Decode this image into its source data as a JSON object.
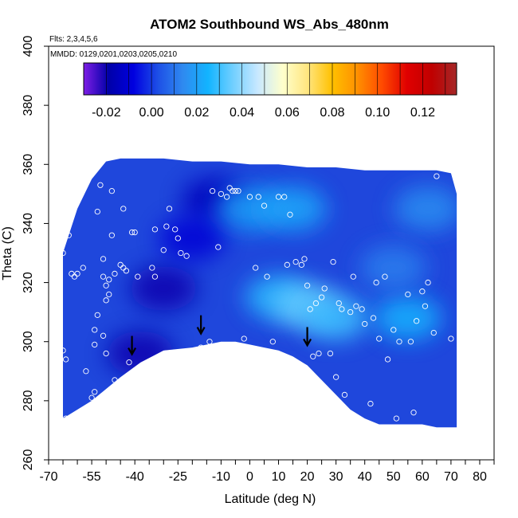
{
  "chart_data": {
    "type": "heatmap",
    "title": "ATOM2 Southbound WS_Abs_480nm",
    "flights_note": "Flts: 2,3,4,5,6",
    "dates_note": "MMDD: 0129,0201,0203,0205,0210",
    "xlabel": "Latitude (deg N)",
    "ylabel": "Theta (C)",
    "xlim": [
      -70,
      85
    ],
    "ylim": [
      260,
      400
    ],
    "x_ticks": [
      -70,
      -55,
      -40,
      -25,
      -10,
      0,
      10,
      20,
      30,
      40,
      50,
      60,
      70,
      80
    ],
    "x_ticks_labels": [
      "-70",
      "-55",
      "-40",
      "-25",
      "-10",
      "0",
      "10",
      "20",
      "30",
      "40",
      "50",
      "60",
      "70",
      "80"
    ],
    "y_ticks": [
      260,
      280,
      300,
      320,
      340,
      360,
      380,
      400
    ],
    "y_ticks_labels": [
      "260",
      "280",
      "300",
      "320",
      "340",
      "360",
      "380",
      "400"
    ],
    "colorbar": {
      "range": [
        -0.03,
        0.135
      ],
      "ticks": [
        -0.02,
        0.0,
        0.02,
        0.04,
        0.06,
        0.08,
        0.1,
        0.12
      ],
      "tick_labels": [
        "-0.02",
        "0.00",
        "0.02",
        "0.04",
        "0.06",
        "0.08",
        "0.10",
        "0.12"
      ],
      "colors": [
        "#7e1ee6",
        "#0000a8",
        "#0000e0",
        "#1e50e6",
        "#2f8af0",
        "#12b4ff",
        "#70cfff",
        "#c8e8ff",
        "#ffffcc",
        "#ffe680",
        "#ffc000",
        "#ff9000",
        "#ff4a00",
        "#e00000",
        "#c00000",
        "#a52828"
      ]
    },
    "tropopause_arrows_lat": [
      -41,
      -17,
      20
    ],
    "tropopause_arrows_theta": [
      296,
      303,
      299
    ],
    "field_lower_boundary": [
      [
        -65,
        274
      ],
      [
        -55,
        280
      ],
      [
        -45,
        288
      ],
      [
        -38,
        293
      ],
      [
        -30,
        297
      ],
      [
        -20,
        298
      ],
      [
        -10,
        300
      ],
      [
        -5,
        300
      ],
      [
        0,
        299
      ],
      [
        5,
        298
      ],
      [
        10,
        297
      ],
      [
        15,
        295
      ],
      [
        20,
        292
      ],
      [
        25,
        287
      ],
      [
        30,
        282
      ],
      [
        35,
        277
      ],
      [
        40,
        274
      ],
      [
        45,
        272
      ],
      [
        50,
        272
      ],
      [
        55,
        272
      ],
      [
        60,
        272
      ],
      [
        65,
        271
      ],
      [
        70,
        271
      ],
      [
        72,
        271
      ]
    ],
    "field_upper_boundary": [
      [
        -65,
        330
      ],
      [
        -60,
        345
      ],
      [
        -55,
        355
      ],
      [
        -50,
        361
      ],
      [
        -45,
        362
      ],
      [
        -40,
        362
      ],
      [
        -30,
        362
      ],
      [
        -20,
        361
      ],
      [
        -10,
        361
      ],
      [
        0,
        360
      ],
      [
        10,
        360
      ],
      [
        20,
        359
      ],
      [
        30,
        359
      ],
      [
        40,
        358
      ],
      [
        50,
        358
      ],
      [
        60,
        358
      ],
      [
        65,
        358
      ],
      [
        70,
        357
      ],
      [
        72,
        350
      ]
    ],
    "field_anomalies": [
      {
        "x": -30,
        "y": 318,
        "value": -0.02
      },
      {
        "x": -38,
        "y": 296,
        "value": -0.02
      },
      {
        "x": -12,
        "y": 348,
        "value": -0.015
      },
      {
        "x": -20,
        "y": 335,
        "value": -0.01
      },
      {
        "x": 10,
        "y": 315,
        "value": 0.028
      },
      {
        "x": 20,
        "y": 312,
        "value": 0.035
      },
      {
        "x": 30,
        "y": 308,
        "value": 0.03
      },
      {
        "x": 55,
        "y": 308,
        "value": 0.025
      },
      {
        "x": 0,
        "y": 345,
        "value": 0.02
      },
      {
        "x": 15,
        "y": 345,
        "value": 0.022
      },
      {
        "x": 62,
        "y": 345,
        "value": 0.015
      },
      {
        "x": 50,
        "y": 325,
        "value": 0.012
      }
    ],
    "sample_points": [
      [
        -65,
        330
      ],
      [
        -65,
        337
      ],
      [
        -65,
        297
      ],
      [
        -64,
        274
      ],
      [
        -64,
        294
      ],
      [
        -63,
        336
      ],
      [
        -62,
        323
      ],
      [
        -61,
        322
      ],
      [
        -60,
        323
      ],
      [
        -58,
        325
      ],
      [
        -57,
        290
      ],
      [
        -55,
        281
      ],
      [
        -54,
        283
      ],
      [
        -54,
        304
      ],
      [
        -54,
        299
      ],
      [
        -53,
        309
      ],
      [
        -53,
        344
      ],
      [
        -52,
        353
      ],
      [
        -51,
        302
      ],
      [
        -51,
        328
      ],
      [
        -51,
        322
      ],
      [
        -50,
        314
      ],
      [
        -50,
        319
      ],
      [
        -50,
        296
      ],
      [
        -49,
        321
      ],
      [
        -49,
        316
      ],
      [
        -48,
        351
      ],
      [
        -48,
        336
      ],
      [
        -47,
        287
      ],
      [
        -47,
        323
      ],
      [
        -45,
        326
      ],
      [
        -44,
        325
      ],
      [
        -44,
        345
      ],
      [
        -43,
        324
      ],
      [
        -42,
        293
      ],
      [
        -41,
        337
      ],
      [
        -40,
        337
      ],
      [
        -39,
        322
      ],
      [
        -36,
        292
      ],
      [
        -34,
        325
      ],
      [
        -33,
        338
      ],
      [
        -33,
        322
      ],
      [
        -31,
        293
      ],
      [
        -30,
        331
      ],
      [
        -29,
        339
      ],
      [
        -28,
        345
      ],
      [
        -26,
        338
      ],
      [
        -25,
        335
      ],
      [
        -24,
        330
      ],
      [
        -22,
        329
      ],
      [
        -19,
        295
      ],
      [
        -17,
        298
      ],
      [
        -15,
        297
      ],
      [
        -14,
        300
      ],
      [
        -13,
        351
      ],
      [
        -11,
        332
      ],
      [
        -10,
        350
      ],
      [
        -8,
        349
      ],
      [
        -7,
        352
      ],
      [
        -6,
        351
      ],
      [
        -5,
        351
      ],
      [
        -4,
        351
      ],
      [
        -2,
        301
      ],
      [
        0,
        349
      ],
      [
        2,
        325
      ],
      [
        3,
        349
      ],
      [
        5,
        346
      ],
      [
        6,
        322
      ],
      [
        8,
        300
      ],
      [
        10,
        349
      ],
      [
        12,
        349
      ],
      [
        13,
        326
      ],
      [
        14,
        343
      ],
      [
        16,
        327
      ],
      [
        18,
        326
      ],
      [
        19,
        328
      ],
      [
        20,
        319
      ],
      [
        21,
        311
      ],
      [
        22,
        295
      ],
      [
        23,
        313
      ],
      [
        24,
        296
      ],
      [
        25,
        315
      ],
      [
        26,
        318
      ],
      [
        28,
        296
      ],
      [
        29,
        327
      ],
      [
        30,
        288
      ],
      [
        31,
        313
      ],
      [
        32,
        311
      ],
      [
        33,
        282
      ],
      [
        35,
        310
      ],
      [
        36,
        322
      ],
      [
        37,
        312
      ],
      [
        39,
        311
      ],
      [
        40,
        306
      ],
      [
        42,
        279
      ],
      [
        43,
        308
      ],
      [
        44,
        320
      ],
      [
        45,
        301
      ],
      [
        47,
        322
      ],
      [
        48,
        294
      ],
      [
        50,
        304
      ],
      [
        51,
        274
      ],
      [
        52,
        300
      ],
      [
        55,
        316
      ],
      [
        56,
        300
      ],
      [
        57,
        276
      ],
      [
        58,
        307
      ],
      [
        60,
        317
      ],
      [
        61,
        312
      ],
      [
        62,
        320
      ],
      [
        64,
        303
      ],
      [
        65,
        356
      ],
      [
        70,
        301
      ]
    ]
  }
}
